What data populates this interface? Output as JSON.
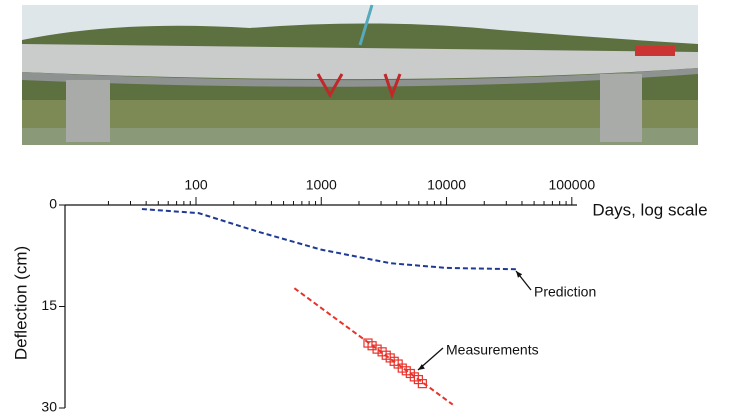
{
  "chart_data": {
    "type": "line",
    "xlabel": "Days, log scale",
    "ylabel": "Deflection (cm)",
    "xlog": true,
    "xlim": [
      9,
      110000
    ],
    "xticks": [
      100,
      1000,
      10000,
      100000
    ],
    "ylim": [
      0,
      30
    ],
    "yticks": [
      0,
      15,
      30
    ],
    "yinverted": true,
    "series": [
      {
        "name": "Prediction",
        "color": "#1f3a93",
        "dashed": true,
        "x": [
          37,
          105,
          320,
          1000,
          3550,
          10000,
          37800
        ],
        "values": [
          0.6,
          1.2,
          4.0,
          6.6,
          8.6,
          9.3,
          9.5
        ]
      },
      {
        "name": "Measurements",
        "color": "#e8322b",
        "marker": "square",
        "x": [
          2360,
          2545,
          2790,
          3060,
          3300,
          3550,
          3820,
          4110,
          4430,
          4770,
          5140,
          5530,
          5960,
          6410
        ],
        "values": [
          20.4,
          20.8,
          21.3,
          21.7,
          22.2,
          22.6,
          23.1,
          23.5,
          24.1,
          24.5,
          24.9,
          25.4,
          25.8,
          26.4
        ]
      },
      {
        "color": "#e8322b",
        "dashed": true,
        "x": [
          610,
          11200
        ],
        "values": [
          12.3,
          29.5
        ]
      }
    ]
  }
}
